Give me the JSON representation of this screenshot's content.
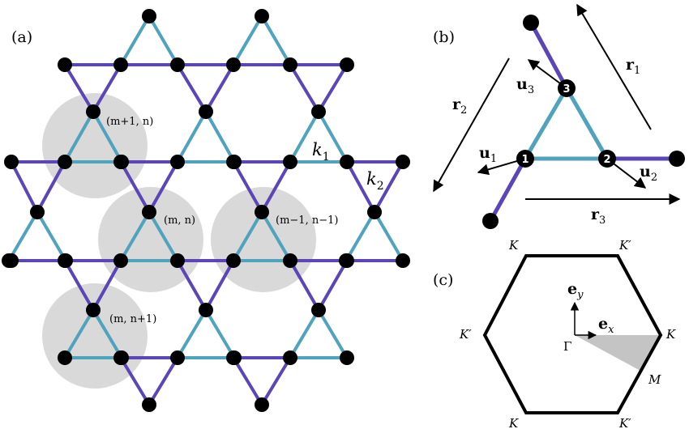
{
  "colors": {
    "bond_intra": "#4fa3bd",
    "bond_inter": "#5b45b8",
    "site": "#000000",
    "highlight": "#d9d9d9",
    "irreducible_wedge": "#c4c4c4"
  },
  "panel_a": {
    "label": "(a)",
    "cell_labels": [
      "(m+1, n)",
      "(m, n)",
      "(m−1, n−1)",
      "(m, n+1)"
    ],
    "k1": {
      "base": "k",
      "sub": "1"
    },
    "k2": {
      "base": "k",
      "sub": "2"
    }
  },
  "panel_b": {
    "label": "(b)",
    "site_numbers": [
      "1",
      "2",
      "3"
    ],
    "u1": {
      "base": "u",
      "sub": "1"
    },
    "u2": {
      "base": "u",
      "sub": "2"
    },
    "u3": {
      "base": "u",
      "sub": "3"
    },
    "r1": {
      "base": "r",
      "sub": "1"
    },
    "r2": {
      "base": "r",
      "sub": "2"
    },
    "r3": {
      "base": "r",
      "sub": "3"
    }
  },
  "panel_c": {
    "label": "(c)",
    "ex": {
      "base": "e",
      "sub": "x"
    },
    "ey": {
      "base": "e",
      "sub": "y"
    },
    "gamma": "Γ",
    "M": "M",
    "corner_labels": {
      "top_left": "K",
      "top_right": "K′",
      "left": "K′",
      "right": "K",
      "bottom_left": "K",
      "bottom_right": "K′"
    }
  }
}
